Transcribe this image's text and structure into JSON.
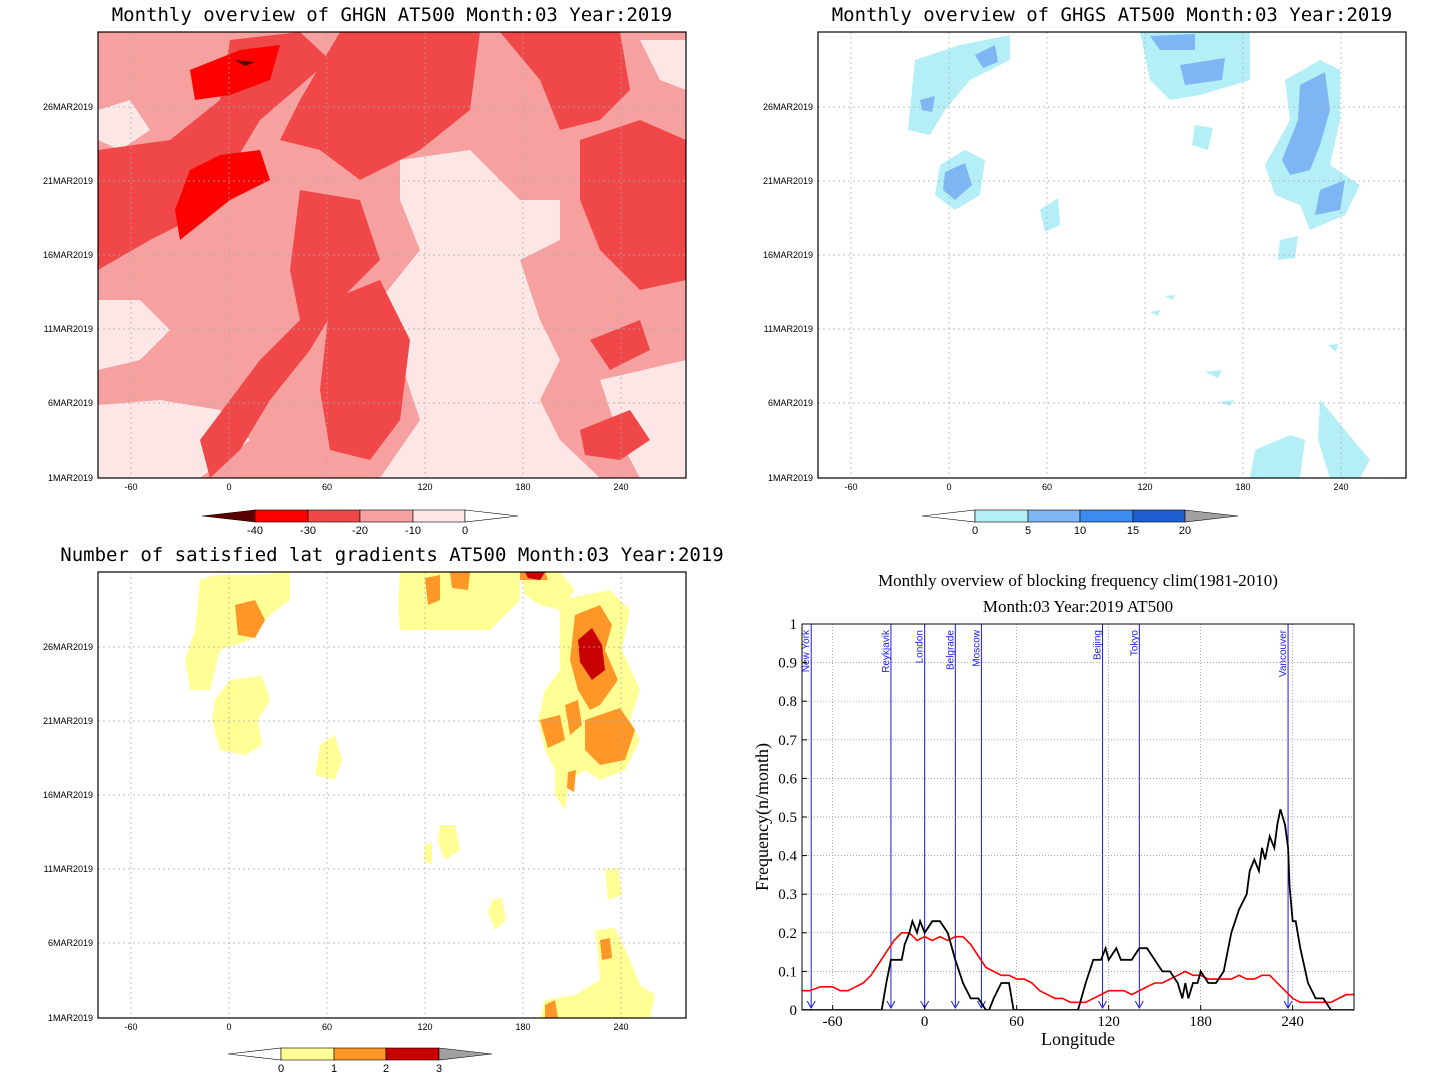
{
  "chart_data": [
    {
      "type": "heatmap",
      "title": "Monthly overview of GHGN AT500 Month:03 Year:2019",
      "x_ticks": [
        -60,
        0,
        60,
        120,
        180,
        240
      ],
      "x_tick_labels": [
        "-60",
        "0",
        "60",
        "120",
        "180",
        "240"
      ],
      "y_ticks": [
        "1MAR2019",
        "6MAR2019",
        "11MAR2019",
        "16MAR2019",
        "21MAR2019",
        "26MAR2019"
      ],
      "grid": true,
      "colorbar": {
        "labels": [
          "-40",
          "-30",
          "-20",
          "-10",
          "0"
        ],
        "colors": [
          "#5a0000",
          "#ff0000",
          "#f04848",
          "#f6a0a0",
          "#fde6e6"
        ]
      }
    },
    {
      "type": "heatmap",
      "title": "Monthly overview of GHGS AT500 Month:03 Year:2019",
      "x_ticks": [
        -60,
        0,
        60,
        120,
        180,
        240
      ],
      "x_tick_labels": [
        "-60",
        "0",
        "60",
        "120",
        "180",
        "240"
      ],
      "y_ticks": [
        "1MAR2019",
        "6MAR2019",
        "11MAR2019",
        "16MAR2019",
        "21MAR2019",
        "26MAR2019"
      ],
      "grid": true,
      "colorbar": {
        "labels": [
          "0",
          "5",
          "10",
          "15",
          "20"
        ],
        "colors": [
          "#b4eef7",
          "#7eb6f4",
          "#3c8cf0",
          "#1e5ed2"
        ]
      }
    },
    {
      "type": "heatmap",
      "title": "Number of satisfied lat gradients AT500 Month:03 Year:2019",
      "x_ticks": [
        -60,
        0,
        60,
        120,
        180,
        240
      ],
      "x_tick_labels": [
        "-60",
        "0",
        "60",
        "120",
        "180",
        "240"
      ],
      "y_ticks": [
        "1MAR2019",
        "6MAR2019",
        "11MAR2019",
        "16MAR2019",
        "21MAR2019",
        "26MAR2019"
      ],
      "grid": true,
      "colorbar": {
        "labels": [
          "0",
          "1",
          "2",
          "3"
        ],
        "colors": [
          "#ffff96",
          "#ff9628",
          "#c80000"
        ]
      }
    },
    {
      "type": "line",
      "title": "Monthly overview of blocking frequency clim(1981-2010)",
      "subtitle": "Month:03 Year:2019  AT500",
      "xlabel": "Longitude",
      "ylabel": "Frequency(n/month)",
      "xlim": [
        -80,
        280
      ],
      "ylim": [
        0,
        1
      ],
      "x_ticks": [
        -60,
        0,
        60,
        120,
        180,
        240
      ],
      "y_ticks": [
        0,
        0.1,
        0.2,
        0.3,
        0.4,
        0.5,
        0.6,
        0.7,
        0.8,
        0.9,
        1
      ],
      "y_tick_labels": [
        "0",
        "0.1",
        "0.2",
        "0.3",
        "0.4",
        "0.5",
        "0.6",
        "0.7",
        "0.8",
        "0.9",
        "1"
      ],
      "grid": true,
      "cities": [
        {
          "name": "New York",
          "lon": -74
        },
        {
          "name": "Reykjavik",
          "lon": -22
        },
        {
          "name": "London",
          "lon": 0
        },
        {
          "name": "Belgrade",
          "lon": 20
        },
        {
          "name": "Moscow",
          "lon": 37
        },
        {
          "name": "Beijing",
          "lon": 116
        },
        {
          "name": "Tokyo",
          "lon": 140
        },
        {
          "name": "Vancouver",
          "lon": 237
        }
      ],
      "series": [
        {
          "color": "#000000",
          "x": [
            -80,
            -28,
            -25,
            -22,
            -20,
            -15,
            -13,
            -10,
            -8,
            -5,
            -3,
            0,
            5,
            10,
            15,
            20,
            25,
            30,
            35,
            40,
            42,
            45,
            50,
            55,
            58,
            62,
            65,
            100,
            105,
            110,
            115,
            118,
            120,
            125,
            128,
            135,
            140,
            145,
            150,
            155,
            160,
            165,
            168,
            170,
            172,
            175,
            178,
            180,
            185,
            190,
            195,
            200,
            205,
            210,
            212,
            215,
            218,
            220,
            222,
            225,
            228,
            230,
            232,
            235,
            237,
            238,
            240,
            242,
            245,
            250,
            255,
            260,
            265,
            280
          ],
          "y": [
            0,
            0,
            0.07,
            0.13,
            0.13,
            0.13,
            0.17,
            0.2,
            0.23,
            0.2,
            0.23,
            0.2,
            0.23,
            0.23,
            0.2,
            0.13,
            0.07,
            0.03,
            0.03,
            0,
            0,
            0.03,
            0.07,
            0.07,
            0,
            0,
            0,
            0,
            0.07,
            0.13,
            0.13,
            0.16,
            0.13,
            0.16,
            0.13,
            0.13,
            0.16,
            0.16,
            0.13,
            0.1,
            0.1,
            0.07,
            0.03,
            0.07,
            0.03,
            0.07,
            0.07,
            0.1,
            0.07,
            0.07,
            0.1,
            0.2,
            0.26,
            0.3,
            0.36,
            0.39,
            0.36,
            0.42,
            0.39,
            0.45,
            0.42,
            0.48,
            0.52,
            0.48,
            0.42,
            0.32,
            0.23,
            0.23,
            0.16,
            0.07,
            0.03,
            0.03,
            0,
            0
          ]
        },
        {
          "color": "#ff0000",
          "x": [
            -80,
            -75,
            -68,
            -60,
            -55,
            -50,
            -45,
            -40,
            -35,
            -30,
            -25,
            -20,
            -15,
            -10,
            -5,
            0,
            5,
            10,
            15,
            20,
            25,
            30,
            35,
            40,
            45,
            50,
            55,
            60,
            65,
            70,
            75,
            80,
            85,
            90,
            95,
            100,
            105,
            110,
            115,
            120,
            125,
            130,
            135,
            140,
            145,
            150,
            155,
            160,
            165,
            170,
            175,
            180,
            185,
            190,
            195,
            200,
            205,
            210,
            215,
            220,
            225,
            230,
            235,
            240,
            245,
            250,
            255,
            260,
            265,
            270,
            275,
            280
          ],
          "y": [
            0.05,
            0.05,
            0.06,
            0.06,
            0.05,
            0.05,
            0.06,
            0.07,
            0.09,
            0.12,
            0.15,
            0.18,
            0.2,
            0.2,
            0.18,
            0.19,
            0.18,
            0.19,
            0.18,
            0.19,
            0.19,
            0.17,
            0.14,
            0.11,
            0.1,
            0.09,
            0.09,
            0.08,
            0.08,
            0.07,
            0.05,
            0.04,
            0.03,
            0.03,
            0.02,
            0.02,
            0.02,
            0.03,
            0.04,
            0.05,
            0.05,
            0.05,
            0.04,
            0.05,
            0.06,
            0.07,
            0.07,
            0.08,
            0.09,
            0.1,
            0.09,
            0.09,
            0.08,
            0.08,
            0.08,
            0.08,
            0.09,
            0.08,
            0.08,
            0.09,
            0.09,
            0.07,
            0.05,
            0.03,
            0.02,
            0.02,
            0.02,
            0.02,
            0.02,
            0.03,
            0.04,
            0.04
          ]
        }
      ]
    }
  ]
}
